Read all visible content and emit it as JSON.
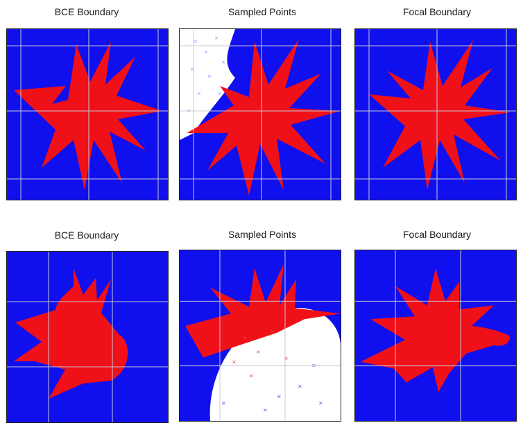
{
  "panels": [
    {
      "title": "BCE Boundary"
    },
    {
      "title": "Sampled Points"
    },
    {
      "title": "Focal Boundary"
    },
    {
      "title": "BCE Boundary"
    },
    {
      "title": "Sampled Points"
    },
    {
      "title": "Focal Boundary"
    }
  ],
  "colors": {
    "class_a": "#1010ee",
    "class_b": "#f01018",
    "empty": "#ffffff",
    "grid": "#c8c8d8",
    "sample_a": "#5555dd",
    "sample_b": "#dd4444"
  }
}
